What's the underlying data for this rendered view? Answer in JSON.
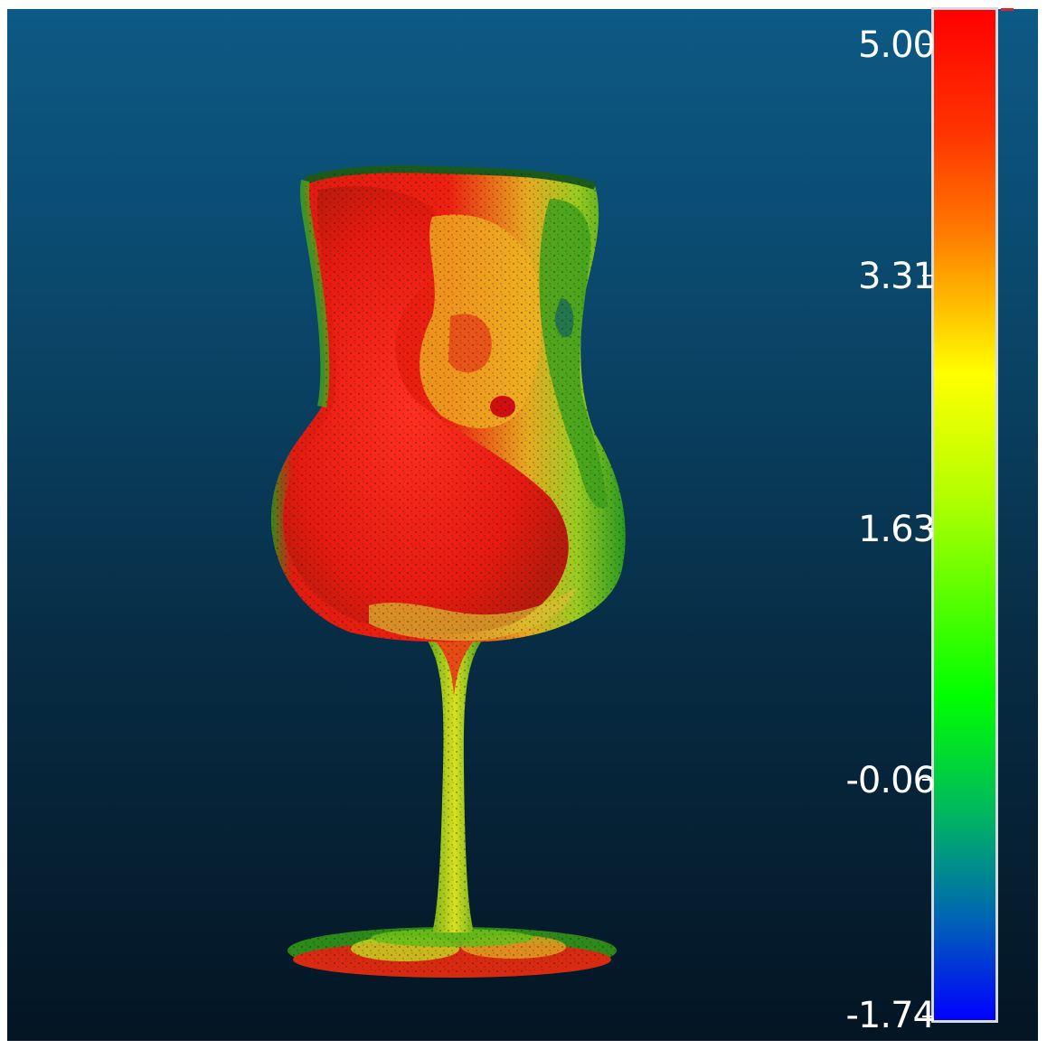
{
  "viewer": {
    "background_top": "#0c5a86",
    "background_bottom": "#041523"
  },
  "object": {
    "icon": "goblet-point-cloud"
  },
  "color_scale": {
    "colors": [
      "#ff0000",
      "#ffff00",
      "#00ff00",
      "#0000ff"
    ],
    "ticks": [
      {
        "label": "5.00"
      },
      {
        "label": "3.31"
      },
      {
        "label": "1.63"
      },
      {
        "label": "-0.06"
      },
      {
        "label": "-1.74"
      }
    ]
  }
}
